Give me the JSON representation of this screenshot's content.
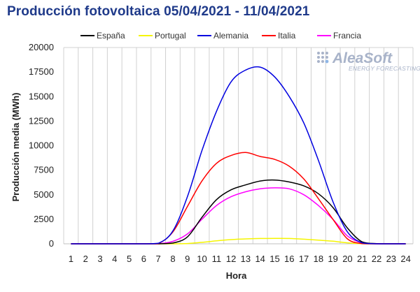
{
  "title": "Producción fotovoltaica 05/04/2021 - 11/04/2021",
  "logo": {
    "name": "AleaSoft",
    "tagline": "ENERGY FORECASTING",
    "color": "#a8b3c9"
  },
  "chart_data": {
    "type": "line",
    "title": "Producción fotovoltaica 05/04/2021 - 11/04/2021",
    "xlabel": "Hora",
    "ylabel": "Producción media (MWh)",
    "categories": [
      1,
      2,
      3,
      4,
      5,
      6,
      7,
      8,
      9,
      10,
      11,
      12,
      13,
      14,
      15,
      16,
      17,
      18,
      19,
      20,
      21,
      22,
      23,
      24
    ],
    "ylim": [
      0,
      20000
    ],
    "yticks": [
      0,
      2500,
      5000,
      7500,
      10000,
      12500,
      15000,
      17500,
      20000
    ],
    "ytick_labels": [
      "0",
      "2500",
      "5000",
      "7500",
      "10000",
      "12500",
      "15000",
      "17500",
      "20000"
    ],
    "grid": "vertical",
    "legend_position": "top",
    "series": [
      {
        "name": "España",
        "color": "#000000",
        "values": [
          0,
          0,
          0,
          0,
          0,
          0,
          0,
          80,
          700,
          2700,
          4500,
          5500,
          6000,
          6400,
          6500,
          6300,
          5900,
          5100,
          3700,
          1600,
          200,
          20,
          0,
          0
        ]
      },
      {
        "name": "Portugal",
        "color": "#f5f500",
        "values": [
          0,
          0,
          0,
          0,
          0,
          0,
          0,
          0,
          30,
          150,
          300,
          430,
          500,
          540,
          550,
          540,
          470,
          380,
          260,
          100,
          10,
          0,
          0,
          0
        ]
      },
      {
        "name": "Alemania",
        "color": "#0000e0",
        "values": [
          0,
          0,
          0,
          0,
          0,
          0,
          50,
          1300,
          4800,
          9500,
          13500,
          16500,
          17700,
          18000,
          17000,
          15000,
          12300,
          8500,
          4300,
          1200,
          100,
          0,
          0,
          0
        ]
      },
      {
        "name": "Italia",
        "color": "#ff0000",
        "values": [
          0,
          0,
          0,
          0,
          0,
          0,
          30,
          1200,
          3800,
          6400,
          8200,
          9000,
          9300,
          8900,
          8600,
          7900,
          6600,
          4600,
          2500,
          500,
          20,
          0,
          0,
          0
        ]
      },
      {
        "name": "Francia",
        "color": "#ff00ff",
        "values": [
          0,
          0,
          0,
          0,
          0,
          0,
          0,
          250,
          1000,
          2500,
          3900,
          4800,
          5300,
          5600,
          5700,
          5600,
          5000,
          3900,
          2500,
          800,
          100,
          0,
          0,
          0
        ]
      }
    ]
  }
}
